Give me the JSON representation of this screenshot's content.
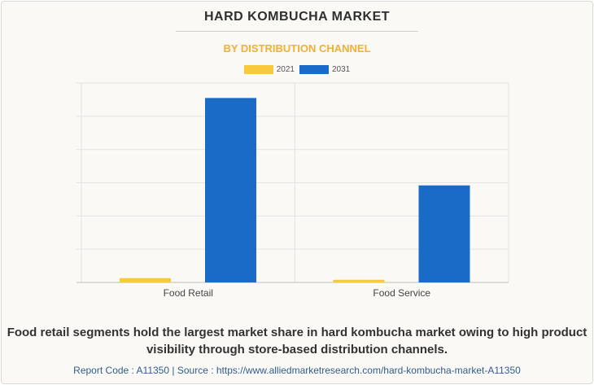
{
  "header": {
    "title": "HARD KOMBUCHA MARKET",
    "subtitle": "BY DISTRIBUTION CHANNEL"
  },
  "chart_data": {
    "type": "bar",
    "categories": [
      "Food Retail",
      "Food Service"
    ],
    "series": [
      {
        "name": "2021",
        "color": "#f8c93a",
        "values": [
          0.13,
          0.08
        ]
      },
      {
        "name": "2031",
        "color": "#1a6ac8",
        "values": [
          5.55,
          2.92
        ]
      }
    ],
    "ylim": [
      0,
      6
    ],
    "grid": true,
    "legend": "top-center",
    "xlabel": "",
    "ylabel": ""
  },
  "footer": {
    "caption": "Food retail segments hold the largest market share in hard kombucha market owing to high product visibility through store-based distribution channels.",
    "report_code": "Report Code : A11350",
    "separator": "|",
    "source": "Source : https://www.alliedmarketresearch.com/hard-kombucha-market-A11350"
  }
}
